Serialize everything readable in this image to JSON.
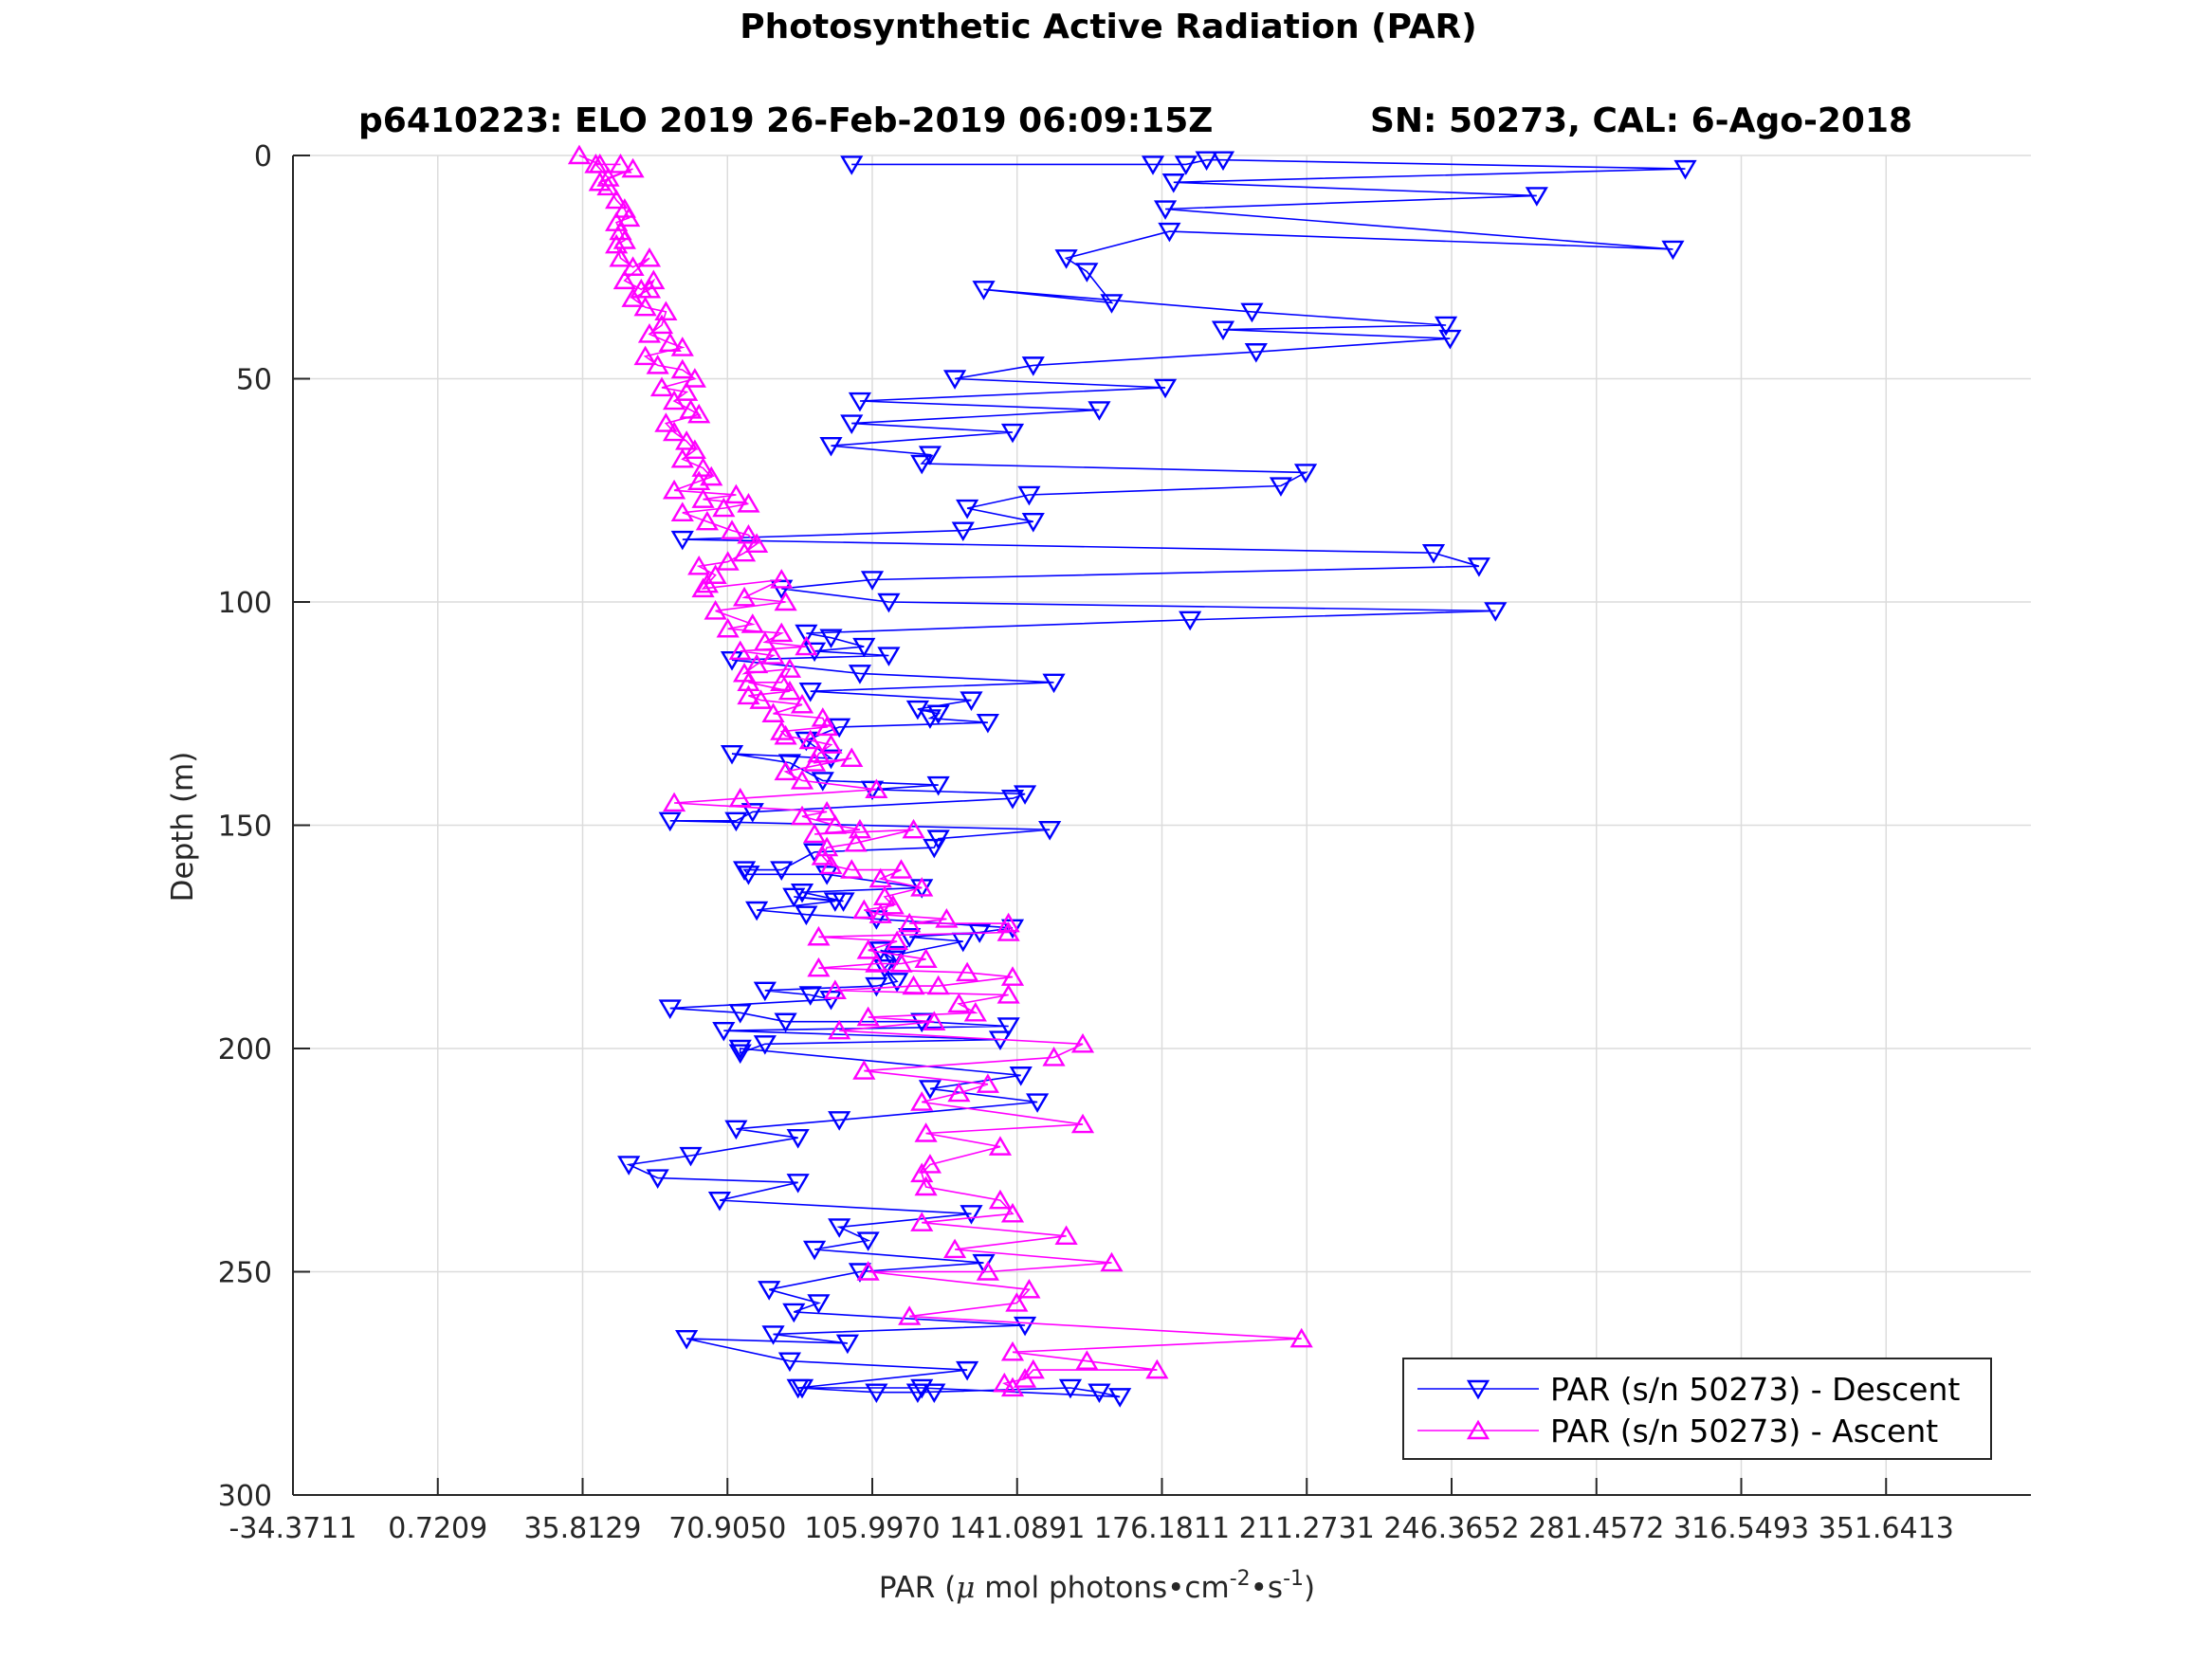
{
  "chart_data": {
    "type": "line",
    "title": "Photosynthetic Active Radiation (PAR)",
    "subtitle_left": "p6410223: ELO 2019 26-Feb-2019 06:09:15Z",
    "subtitle_right": "SN: 50273, CAL: 6-Ago-2018",
    "xlabel": {
      "prefix": "PAR (",
      "mu": "μ",
      "middle": " mol photons•cm",
      "exp1": "-2",
      "dot": "•s",
      "exp2": "-1",
      "suffix": ")"
    },
    "ylabel": "Depth (m)",
    "xlim": [
      -34.3711,
      386.7333
    ],
    "ylim": [
      0,
      300
    ],
    "y_reversed": true,
    "grid": true,
    "legend_position": "bottom-right",
    "x_ticks": [
      -34.3711,
      0.7209,
      35.8129,
      70.905,
      105.997,
      141.0891,
      176.1811,
      211.2731,
      246.3652,
      281.4572,
      316.5493,
      351.6413
    ],
    "x_tick_labels": [
      "-34.3711",
      "0.7209",
      "35.8129",
      "70.9050",
      "105.9970",
      "141.0891",
      "176.1811",
      "211.2731",
      "246.3652",
      "281.4572",
      "316.5493",
      "351.6413"
    ],
    "y_ticks": [
      0,
      50,
      100,
      150,
      200,
      250,
      300
    ],
    "y_tick_labels": [
      "0",
      "50",
      "100",
      "150",
      "200",
      "250",
      "300"
    ],
    "series": [
      {
        "name": "PAR (s/n 50273) - Descent",
        "color": "#0000ff",
        "marker": "triangle-down",
        "points": [
          [
            101,
            2
          ],
          [
            174,
            2
          ],
          [
            182,
            2
          ],
          [
            187,
            1
          ],
          [
            191,
            1
          ],
          [
            303,
            3
          ],
          [
            179,
            6
          ],
          [
            267,
            9
          ],
          [
            177,
            12
          ],
          [
            300,
            21
          ],
          [
            178,
            17
          ],
          [
            153,
            23
          ],
          [
            158,
            26
          ],
          [
            164,
            33
          ],
          [
            133,
            30
          ],
          [
            198,
            35
          ],
          [
            245,
            38
          ],
          [
            191,
            39
          ],
          [
            246,
            41
          ],
          [
            199,
            44
          ],
          [
            145,
            47
          ],
          [
            126,
            50
          ],
          [
            177,
            52
          ],
          [
            103,
            55
          ],
          [
            161,
            57
          ],
          [
            101,
            60
          ],
          [
            140,
            62
          ],
          [
            96,
            65
          ],
          [
            120,
            67
          ],
          [
            118,
            69
          ],
          [
            211,
            71
          ],
          [
            205,
            74
          ],
          [
            144,
            76
          ],
          [
            129,
            79
          ],
          [
            145,
            82
          ],
          [
            128,
            84
          ],
          [
            60,
            86
          ],
          [
            242,
            89
          ],
          [
            253,
            92
          ],
          [
            106,
            95
          ],
          [
            84,
            97
          ],
          [
            110,
            100
          ],
          [
            257,
            102
          ],
          [
            183,
            104
          ],
          [
            90,
            107
          ],
          [
            96,
            108
          ],
          [
            104,
            110
          ],
          [
            92,
            111
          ],
          [
            110,
            112
          ],
          [
            72,
            113
          ],
          [
            103,
            116
          ],
          [
            150,
            118
          ],
          [
            91,
            120
          ],
          [
            130,
            122
          ],
          [
            117,
            124
          ],
          [
            122,
            125
          ],
          [
            120,
            126
          ],
          [
            134,
            127
          ],
          [
            98,
            128
          ],
          [
            90,
            131
          ],
          [
            96,
            135
          ],
          [
            72,
            134
          ],
          [
            86,
            136
          ],
          [
            94,
            140
          ],
          [
            122,
            141
          ],
          [
            106,
            142
          ],
          [
            143,
            143
          ],
          [
            140,
            144
          ],
          [
            77,
            147
          ],
          [
            73,
            149
          ],
          [
            57,
            149
          ],
          [
            149,
            151
          ],
          [
            122,
            153
          ],
          [
            121,
            155
          ],
          [
            92,
            156
          ],
          [
            84,
            160
          ],
          [
            75,
            160
          ],
          [
            76,
            161
          ],
          [
            95,
            161
          ],
          [
            118,
            164
          ],
          [
            89,
            165
          ],
          [
            99,
            167
          ],
          [
            87,
            166
          ],
          [
            97,
            167
          ],
          [
            78,
            169
          ],
          [
            90,
            170
          ],
          [
            107,
            171
          ],
          [
            140,
            173
          ],
          [
            132,
            174
          ],
          [
            115,
            175
          ],
          [
            128,
            176
          ],
          [
            112,
            179
          ],
          [
            108,
            178
          ],
          [
            111,
            180
          ],
          [
            109,
            182
          ],
          [
            112,
            185
          ],
          [
            107,
            186
          ],
          [
            80,
            187
          ],
          [
            91,
            188
          ],
          [
            96,
            189
          ],
          [
            57,
            191
          ],
          [
            74,
            192
          ],
          [
            85,
            194
          ],
          [
            118,
            194
          ],
          [
            139,
            195
          ],
          [
            70,
            196
          ],
          [
            137,
            198
          ],
          [
            80,
            199
          ],
          [
            74,
            201
          ],
          [
            74,
            200
          ],
          [
            142,
            206
          ],
          [
            120,
            209
          ],
          [
            146,
            212
          ],
          [
            98,
            216
          ],
          [
            73,
            218
          ],
          [
            88,
            220
          ],
          [
            62,
            224
          ],
          [
            47,
            226
          ],
          [
            54,
            229
          ],
          [
            88,
            230
          ],
          [
            69,
            234
          ],
          [
            130,
            237
          ],
          [
            98,
            240
          ],
          [
            105,
            243
          ],
          [
            92,
            245
          ],
          [
            133,
            248
          ],
          [
            103,
            250
          ],
          [
            81,
            254
          ],
          [
            93,
            257
          ],
          [
            87,
            259
          ],
          [
            143,
            262
          ],
          [
            82,
            264
          ],
          [
            100,
            266
          ],
          [
            61,
            265
          ],
          [
            86,
            270
          ],
          [
            129,
            272
          ],
          [
            88,
            276
          ],
          [
            107,
            277
          ],
          [
            121,
            277
          ],
          [
            117,
            277
          ],
          [
            154,
            276
          ],
          [
            161,
            277
          ],
          [
            166,
            278
          ],
          [
            118,
            276
          ],
          [
            89,
            276
          ]
        ]
      },
      {
        "name": "PAR (s/n 50273) - Ascent",
        "color": "#ff00ff",
        "marker": "triangle-up",
        "points": [
          [
            35,
            0
          ],
          [
            40,
            2
          ],
          [
            45,
            2
          ],
          [
            39,
            2
          ],
          [
            42,
            5
          ],
          [
            48,
            3
          ],
          [
            40,
            6
          ],
          [
            42,
            7
          ],
          [
            44,
            10
          ],
          [
            46,
            12
          ],
          [
            47,
            14
          ],
          [
            44,
            15
          ],
          [
            45,
            17
          ],
          [
            46,
            19
          ],
          [
            44,
            20
          ],
          [
            45,
            23
          ],
          [
            48,
            25
          ],
          [
            52,
            23
          ],
          [
            46,
            28
          ],
          [
            50,
            30
          ],
          [
            53,
            28
          ],
          [
            52,
            30
          ],
          [
            48,
            32
          ],
          [
            51,
            34
          ],
          [
            56,
            35
          ],
          [
            55,
            38
          ],
          [
            52,
            40
          ],
          [
            57,
            42
          ],
          [
            60,
            43
          ],
          [
            51,
            45
          ],
          [
            54,
            47
          ],
          [
            60,
            48
          ],
          [
            63,
            50
          ],
          [
            55,
            52
          ],
          [
            61,
            53
          ],
          [
            58,
            55
          ],
          [
            62,
            57
          ],
          [
            64,
            58
          ],
          [
            56,
            60
          ],
          [
            58,
            62
          ],
          [
            61,
            64
          ],
          [
            63,
            66
          ],
          [
            60,
            68
          ],
          [
            65,
            70
          ],
          [
            67,
            72
          ],
          [
            64,
            73
          ],
          [
            58,
            75
          ],
          [
            73,
            76
          ],
          [
            65,
            77
          ],
          [
            76,
            78
          ],
          [
            70,
            79
          ],
          [
            60,
            80
          ],
          [
            66,
            82
          ],
          [
            72,
            84
          ],
          [
            76,
            85
          ],
          [
            78,
            87
          ],
          [
            75,
            89
          ],
          [
            71,
            91
          ],
          [
            64,
            92
          ],
          [
            68,
            94
          ],
          [
            66,
            96
          ],
          [
            65,
            97
          ],
          [
            84,
            95
          ],
          [
            75,
            99
          ],
          [
            85,
            100
          ],
          [
            68,
            102
          ],
          [
            77,
            105
          ],
          [
            71,
            106
          ],
          [
            84,
            107
          ],
          [
            80,
            109
          ],
          [
            90,
            110
          ],
          [
            74,
            111
          ],
          [
            82,
            112
          ],
          [
            78,
            114
          ],
          [
            75,
            116
          ],
          [
            86,
            115
          ],
          [
            84,
            118
          ],
          [
            76,
            118
          ],
          [
            86,
            120
          ],
          [
            76,
            121
          ],
          [
            79,
            122
          ],
          [
            89,
            123
          ],
          [
            82,
            125
          ],
          [
            94,
            126
          ],
          [
            95,
            128
          ],
          [
            84,
            129
          ],
          [
            85,
            130
          ],
          [
            91,
            131
          ],
          [
            96,
            132
          ],
          [
            93,
            134
          ],
          [
            92,
            136
          ],
          [
            101,
            135
          ],
          [
            85,
            138
          ],
          [
            89,
            140
          ],
          [
            107,
            142
          ],
          [
            74,
            144
          ],
          [
            58,
            145
          ],
          [
            95,
            147
          ],
          [
            89,
            148
          ],
          [
            97,
            150
          ],
          [
            103,
            151
          ],
          [
            92,
            152
          ],
          [
            116,
            151
          ],
          [
            102,
            154
          ],
          [
            95,
            155
          ],
          [
            94,
            157
          ],
          [
            96,
            159
          ],
          [
            101,
            160
          ],
          [
            113,
            160
          ],
          [
            108,
            162
          ],
          [
            118,
            164
          ],
          [
            109,
            166
          ],
          [
            111,
            168
          ],
          [
            104,
            169
          ],
          [
            108,
            170
          ],
          [
            124,
            171
          ],
          [
            115,
            172
          ],
          [
            139,
            172
          ],
          [
            139,
            174
          ],
          [
            93,
            175
          ],
          [
            112,
            176
          ],
          [
            105,
            178
          ],
          [
            119,
            180
          ],
          [
            113,
            181
          ],
          [
            107,
            181
          ],
          [
            93,
            182
          ],
          [
            129,
            183
          ],
          [
            140,
            184
          ],
          [
            122,
            186
          ],
          [
            116,
            186
          ],
          [
            97,
            187
          ],
          [
            139,
            188
          ],
          [
            127,
            190
          ],
          [
            131,
            192
          ],
          [
            105,
            193
          ],
          [
            121,
            194
          ],
          [
            98,
            196
          ],
          [
            157,
            199
          ],
          [
            150,
            202
          ],
          [
            104,
            205
          ],
          [
            134,
            208
          ],
          [
            127,
            210
          ],
          [
            118,
            212
          ],
          [
            157,
            217
          ],
          [
            119,
            219
          ],
          [
            137,
            222
          ],
          [
            120,
            226
          ],
          [
            118,
            228
          ],
          [
            119,
            231
          ],
          [
            137,
            234
          ],
          [
            140,
            237
          ],
          [
            118,
            239
          ],
          [
            153,
            242
          ],
          [
            126,
            245
          ],
          [
            164,
            248
          ],
          [
            134,
            250
          ],
          [
            105,
            250
          ],
          [
            144,
            254
          ],
          [
            141,
            257
          ],
          [
            115,
            260
          ],
          [
            210,
            265
          ],
          [
            140,
            268
          ],
          [
            158,
            270
          ],
          [
            175,
            272
          ],
          [
            145,
            272
          ],
          [
            143,
            274
          ],
          [
            138,
            275
          ],
          [
            140,
            276
          ]
        ]
      }
    ]
  }
}
